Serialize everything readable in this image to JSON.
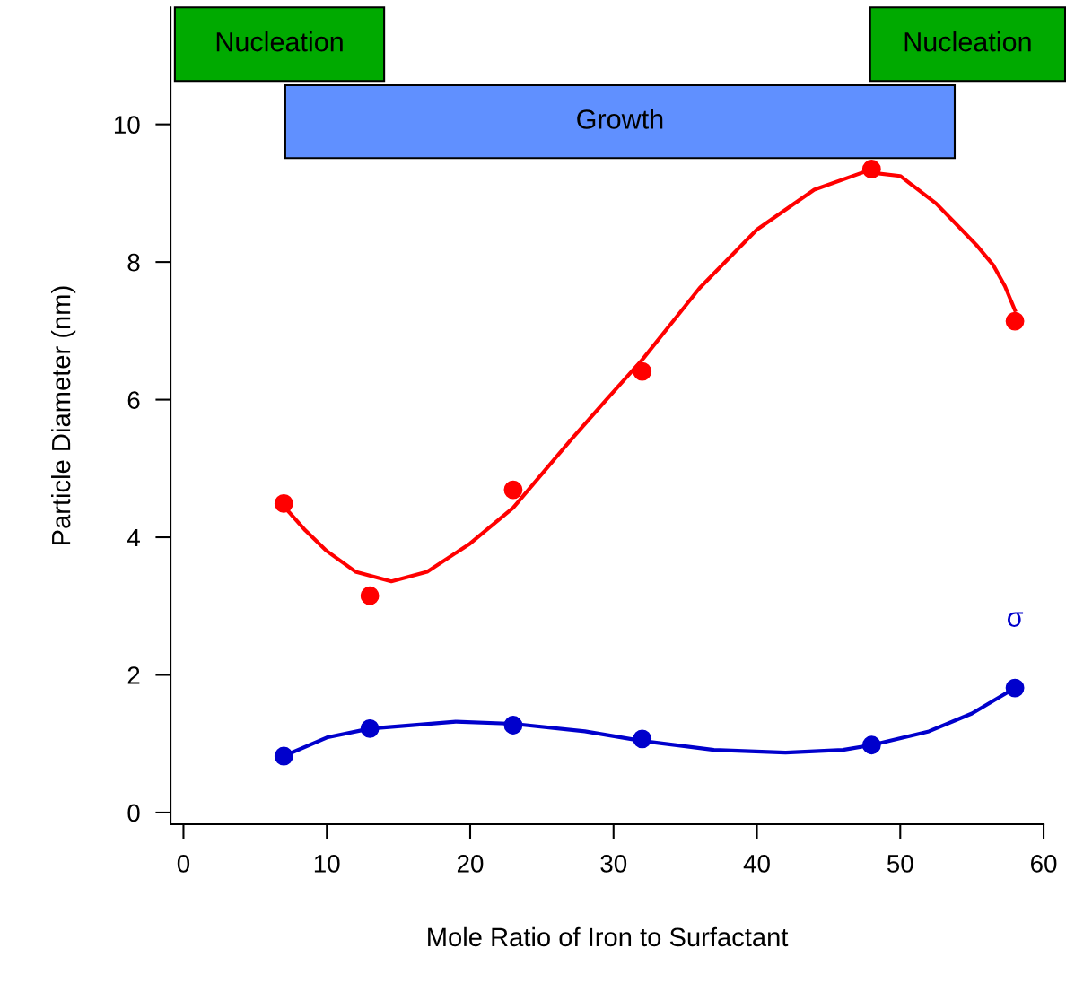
{
  "chart_data": {
    "type": "scatter",
    "xlabel": "Mole Ratio of Iron to Surfactant",
    "ylabel": "Particle Diameter (nm)",
    "xlim": [
      -0.9,
      60
    ],
    "ylim": [
      -0.17,
      11.7
    ],
    "xticks": [
      0,
      10,
      20,
      30,
      40,
      50,
      60
    ],
    "yticks": [
      0,
      2,
      4,
      6,
      8,
      10
    ],
    "grid": false,
    "marker": "circle",
    "series": [
      {
        "color": "#ff0000",
        "x": [
          7,
          13,
          23,
          32,
          48,
          58
        ],
        "values": [
          4.49,
          3.15,
          4.69,
          6.41,
          9.35,
          7.14
        ]
      },
      {
        "name": "σ",
        "color": "#0000cc",
        "x": [
          7,
          13,
          23,
          32,
          48,
          58
        ],
        "values": [
          0.82,
          1.22,
          1.27,
          1.07,
          0.98,
          1.81
        ]
      },
      {
        "type": "line",
        "marker": "none",
        "color": "#ff0000",
        "x": [
          7,
          8.5,
          10,
          12,
          14.5,
          17,
          20,
          23,
          27,
          29.5,
          32,
          36,
          40,
          44,
          47.5,
          50,
          52.5,
          54,
          55.3,
          56.5,
          57.3,
          58
        ],
        "values": [
          4.45,
          4.1,
          3.8,
          3.5,
          3.36,
          3.5,
          3.91,
          4.43,
          5.41,
          6.0,
          6.58,
          7.62,
          8.47,
          9.05,
          9.31,
          9.25,
          8.85,
          8.53,
          8.25,
          7.95,
          7.65,
          7.3
        ]
      },
      {
        "type": "line",
        "marker": "none",
        "color": "#0000cc",
        "x": [
          7,
          10,
          13,
          19,
          23,
          28,
          32,
          37,
          42,
          46,
          48,
          52,
          55,
          58
        ],
        "values": [
          0.82,
          1.09,
          1.22,
          1.32,
          1.29,
          1.18,
          1.04,
          0.91,
          0.87,
          0.91,
          0.98,
          1.18,
          1.44,
          1.81
        ]
      }
    ],
    "bands": [
      {
        "axis": "x",
        "from": -0.6,
        "to": 14,
        "label": "Nucleation",
        "color": "#00aa00"
      },
      {
        "axis": "x",
        "from": 7.1,
        "to": 53.8,
        "label": "Growth",
        "color": "#6090ff"
      },
      {
        "axis": "x",
        "from": 47.9,
        "to": 61.5,
        "label": "Nucleation",
        "color": "#00aa00"
      }
    ]
  }
}
